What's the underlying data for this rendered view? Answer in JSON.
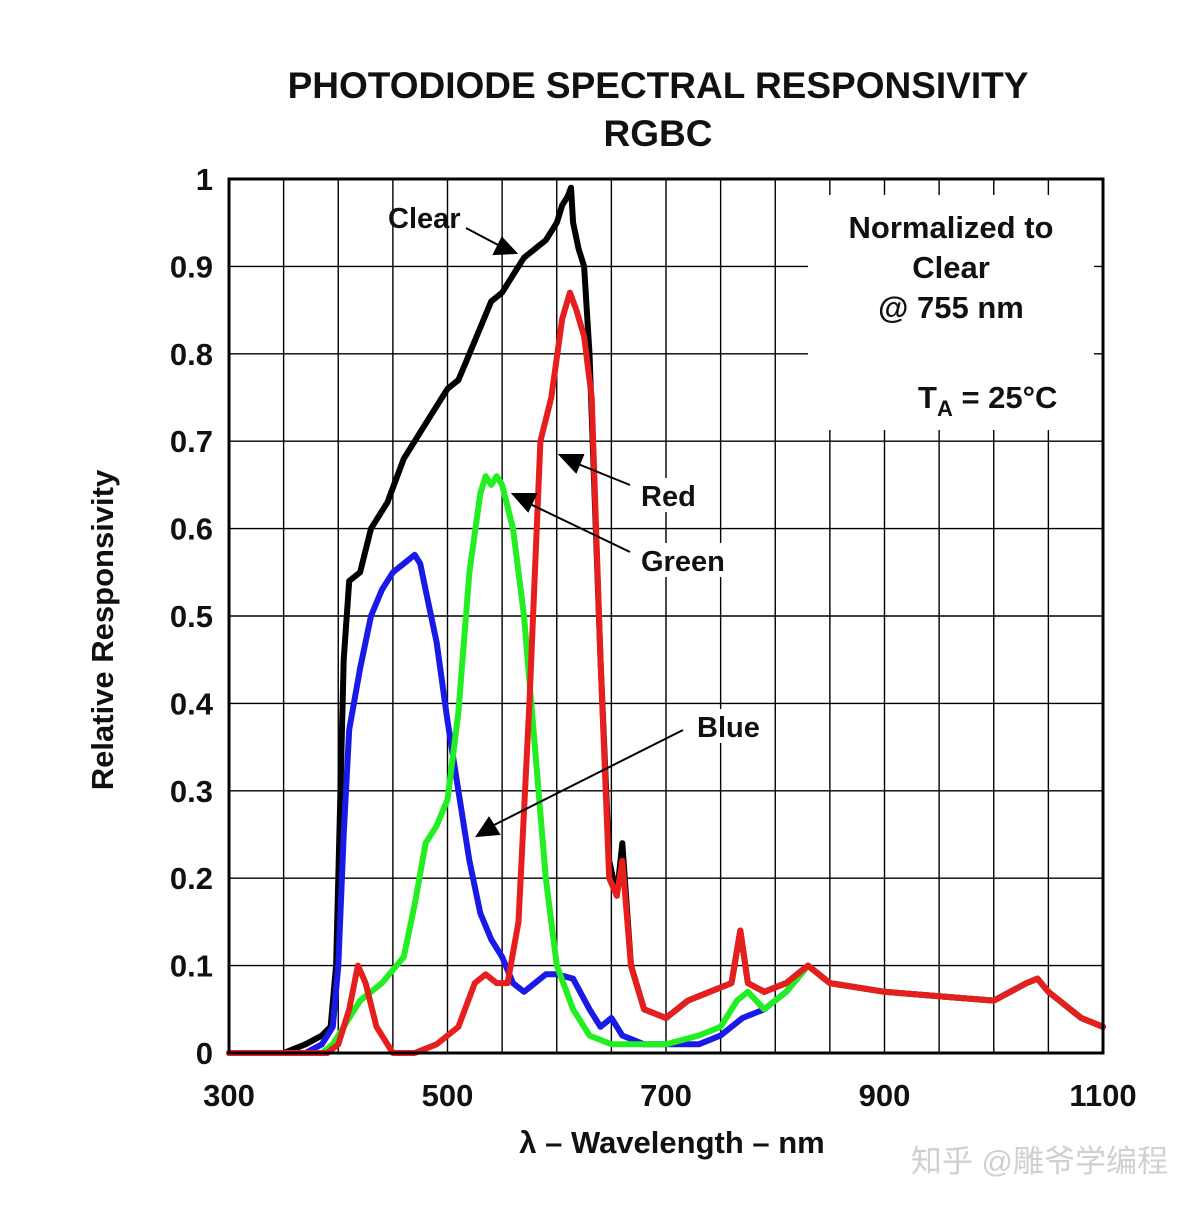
{
  "chart_data": {
    "type": "line",
    "title": "PHOTODIODE SPECTRAL RESPONSIVITY",
    "subtitle": "RGBC",
    "xlabel": "λ – Wavelength – nm",
    "ylabel": "Relative Responsivity",
    "xlim": [
      300,
      1100
    ],
    "ylim": [
      0,
      1
    ],
    "x_ticks": [
      300,
      500,
      700,
      900,
      1100
    ],
    "y_ticks": [
      "0",
      "0.1",
      "0.2",
      "0.3",
      "0.4",
      "0.5",
      "0.6",
      "0.7",
      "0.8",
      "0.9",
      "1"
    ],
    "grid": true,
    "annotations": {
      "normalized_line1": "Normalized to",
      "normalized_line2": "Clear",
      "normalized_line3": "@ 755 nm",
      "temp_prefix": "T",
      "temp_sub": "A",
      "temp_suffix": " = 25°C"
    },
    "series": [
      {
        "name": "Clear",
        "color": "#000000",
        "x": [
          300,
          350,
          370,
          385,
          393,
          398,
          400,
          405,
          410,
          420,
          430,
          445,
          460,
          470,
          480,
          490,
          500,
          510,
          520,
          530,
          540,
          550,
          560,
          570,
          580,
          590,
          600,
          605,
          610,
          613,
          615,
          620,
          625,
          630,
          640,
          648,
          655,
          660,
          668,
          680,
          700,
          720,
          740,
          760,
          768,
          775,
          790,
          810,
          830,
          850,
          900,
          950,
          1000,
          1030,
          1040,
          1050,
          1080,
          1100
        ],
        "y": [
          0,
          0,
          0.01,
          0.02,
          0.03,
          0.1,
          0.2,
          0.45,
          0.54,
          0.55,
          0.6,
          0.63,
          0.68,
          0.7,
          0.72,
          0.74,
          0.76,
          0.77,
          0.8,
          0.83,
          0.86,
          0.87,
          0.89,
          0.91,
          0.92,
          0.93,
          0.95,
          0.97,
          0.98,
          0.99,
          0.95,
          0.92,
          0.9,
          0.8,
          0.45,
          0.22,
          0.18,
          0.24,
          0.1,
          0.05,
          0.04,
          0.06,
          0.07,
          0.08,
          0.14,
          0.08,
          0.07,
          0.08,
          0.1,
          0.08,
          0.07,
          0.065,
          0.06,
          0.08,
          0.085,
          0.07,
          0.04,
          0.03
        ]
      },
      {
        "name": "Red",
        "color": "#e61e1e",
        "x": [
          300,
          390,
          400,
          410,
          418,
          425,
          435,
          450,
          470,
          490,
          510,
          525,
          535,
          545,
          555,
          565,
          575,
          585,
          595,
          605,
          612,
          618,
          625,
          632,
          640,
          648,
          655,
          660,
          668,
          680,
          700,
          720,
          740,
          760,
          768,
          775,
          790,
          810,
          830,
          850,
          900,
          950,
          1000,
          1030,
          1040,
          1050,
          1080,
          1100
        ],
        "y": [
          0,
          0,
          0.01,
          0.05,
          0.1,
          0.08,
          0.03,
          0,
          0,
          0.01,
          0.03,
          0.08,
          0.09,
          0.08,
          0.08,
          0.15,
          0.4,
          0.7,
          0.75,
          0.84,
          0.87,
          0.85,
          0.82,
          0.75,
          0.45,
          0.2,
          0.18,
          0.22,
          0.1,
          0.05,
          0.04,
          0.06,
          0.07,
          0.08,
          0.14,
          0.08,
          0.07,
          0.08,
          0.1,
          0.08,
          0.07,
          0.065,
          0.06,
          0.08,
          0.085,
          0.07,
          0.04,
          0.03
        ]
      },
      {
        "name": "Green",
        "color": "#22ee22",
        "x": [
          300,
          385,
          395,
          405,
          420,
          440,
          460,
          470,
          480,
          490,
          500,
          510,
          520,
          530,
          535,
          540,
          545,
          550,
          560,
          570,
          580,
          590,
          600,
          615,
          630,
          650,
          670,
          700,
          730,
          750,
          765,
          775,
          790,
          810,
          830,
          850,
          900,
          950,
          1000,
          1030,
          1040,
          1050,
          1080,
          1100
        ],
        "y": [
          0,
          0,
          0.01,
          0.03,
          0.06,
          0.08,
          0.11,
          0.17,
          0.24,
          0.26,
          0.29,
          0.39,
          0.55,
          0.64,
          0.66,
          0.65,
          0.66,
          0.65,
          0.6,
          0.5,
          0.35,
          0.2,
          0.1,
          0.05,
          0.02,
          0.01,
          0.01,
          0.01,
          0.02,
          0.03,
          0.06,
          0.07,
          0.05,
          0.07,
          0.1,
          0.08,
          0.07,
          0.065,
          0.06,
          0.08,
          0.085,
          0.07,
          0.04,
          0.03
        ]
      },
      {
        "name": "Blue",
        "color": "#1a1ae6",
        "x": [
          300,
          370,
          385,
          395,
          400,
          405,
          410,
          420,
          430,
          440,
          450,
          460,
          470,
          475,
          480,
          490,
          500,
          510,
          520,
          530,
          540,
          550,
          560,
          570,
          580,
          590,
          600,
          615,
          630,
          640,
          650,
          660,
          680,
          700,
          730,
          750,
          770,
          790,
          810,
          830,
          850,
          900,
          950,
          1000,
          1030,
          1040,
          1050,
          1080,
          1100
        ],
        "y": [
          0,
          0,
          0.01,
          0.03,
          0.1,
          0.25,
          0.37,
          0.44,
          0.5,
          0.53,
          0.55,
          0.56,
          0.57,
          0.56,
          0.53,
          0.47,
          0.38,
          0.3,
          0.22,
          0.16,
          0.13,
          0.11,
          0.08,
          0.07,
          0.08,
          0.09,
          0.09,
          0.085,
          0.05,
          0.03,
          0.04,
          0.02,
          0.01,
          0.01,
          0.01,
          0.02,
          0.04,
          0.05,
          0.07,
          0.1,
          0.08,
          0.07,
          0.065,
          0.06,
          0.08,
          0.085,
          0.07,
          0.04,
          0.03
        ]
      }
    ]
  },
  "watermark": "知乎 @雕爷学编程"
}
